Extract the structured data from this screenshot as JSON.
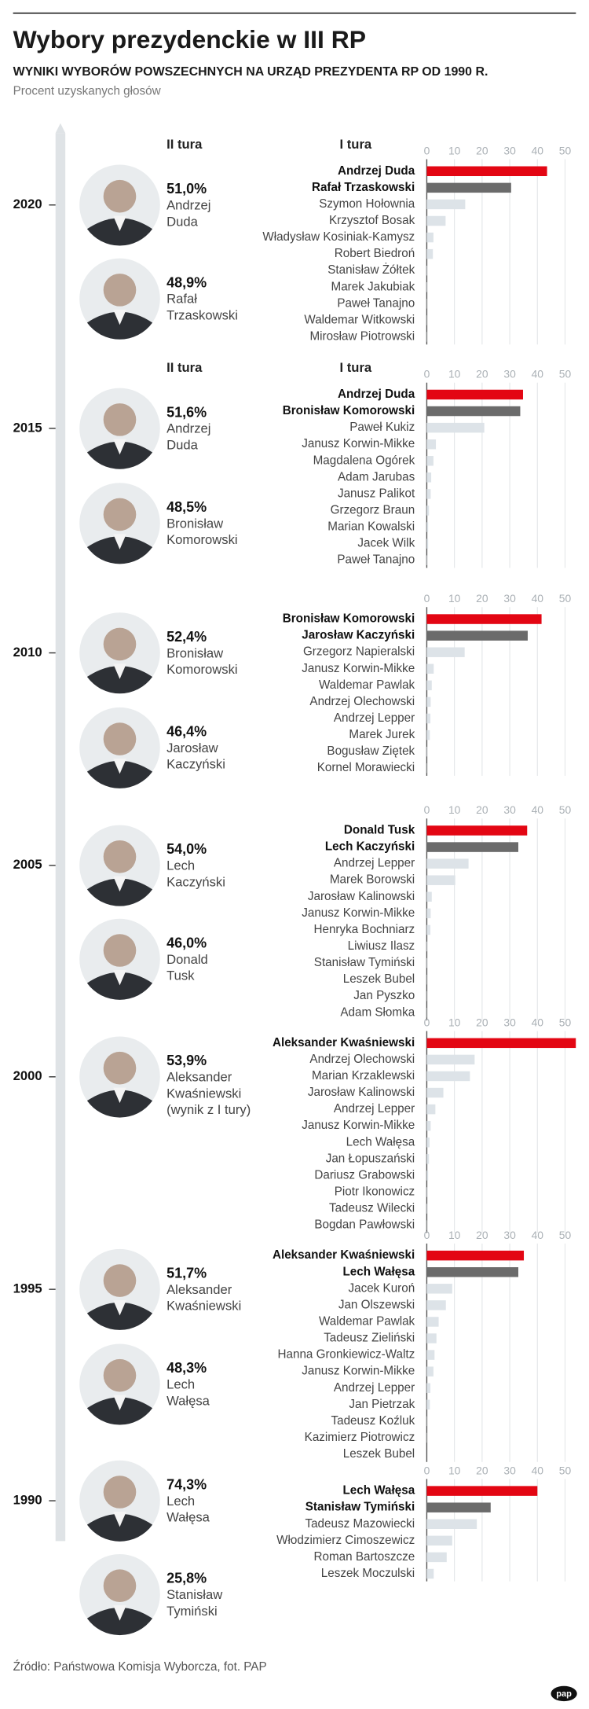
{
  "title": "Wybory prezydenckie w III RP",
  "subtitle": "WYNIKI WYBORÓW POWSZECHNYCH NA URZĄD PREZYDENTA RP OD 1990 R.",
  "note": "Procent uzyskanych głosów",
  "source": "Źródło: Państwowa Komisja Wyborcza, fot. PAP",
  "logo": "pap",
  "chart_data": [
    {
      "type": "bar",
      "year": "2020",
      "round2_header": "II tura",
      "round1_header": "I tura",
      "round2": {
        "names": [
          [
            "Andrzej",
            "Duda"
          ],
          [
            "Rafał",
            "Trzaskowski"
          ]
        ],
        "values": [
          51.0,
          48.9
        ],
        "value_labels": [
          "51,0%",
          "48,9%"
        ]
      },
      "categories": [
        "Andrzej Duda",
        "Rafał Trzaskowski",
        "Szymon Hołownia",
        "Krzysztof Bosak",
        "Władysław Kosiniak-Kamysz",
        "Robert Biedroń",
        "Stanisław Żółtek",
        "Marek Jakubiak",
        "Paweł Tanajno",
        "Waldemar Witkowski",
        "Mirosław Piotrowski"
      ],
      "values": [
        43.5,
        30.5,
        13.9,
        6.8,
        2.4,
        2.2,
        0.2,
        0.2,
        0.1,
        0.1,
        0.1
      ],
      "highlight_colors": [
        "#e30613",
        "#6b6b6b"
      ],
      "color": "#dde3e8",
      "xlim": [
        0,
        50
      ],
      "xticks": [
        0,
        10,
        20,
        30,
        40,
        50
      ],
      "grid": true
    },
    {
      "type": "bar",
      "year": "2015",
      "round2_header": "II tura",
      "round1_header": "I tura",
      "round2": {
        "names": [
          [
            "Andrzej",
            "Duda"
          ],
          [
            "Bronisław",
            "Komorowski"
          ]
        ],
        "values": [
          51.6,
          48.5
        ],
        "value_labels": [
          "51,6%",
          "48,5%"
        ]
      },
      "categories": [
        "Andrzej Duda",
        "Bronisław Komorowski",
        "Paweł Kukiz",
        "Janusz Korwin-Mikke",
        "Magdalena Ogórek",
        "Adam Jarubas",
        "Janusz Palikot",
        "Grzegorz Braun",
        "Marian Kowalski",
        "Jacek Wilk",
        "Paweł Tanajno"
      ],
      "values": [
        34.8,
        33.8,
        20.8,
        3.3,
        2.4,
        1.6,
        1.4,
        0.8,
        0.5,
        0.5,
        0.2
      ],
      "highlight_colors": [
        "#e30613",
        "#6b6b6b"
      ],
      "color": "#dde3e8",
      "xlim": [
        0,
        50
      ],
      "xticks": [
        0,
        10,
        20,
        30,
        40,
        50
      ],
      "grid": true
    },
    {
      "type": "bar",
      "year": "2010",
      "round2": {
        "names": [
          [
            "Bronisław",
            "Komorowski"
          ],
          [
            "Jarosław",
            "Kaczyński"
          ]
        ],
        "values": [
          52.4,
          46.4
        ],
        "value_labels": [
          "52,4%",
          "46,4%"
        ]
      },
      "categories": [
        "Bronisław Komorowski",
        "Jarosław Kaczyński",
        "Grzegorz Napieralski",
        "Janusz Korwin-Mikke",
        "Waldemar Pawlak",
        "Andrzej Olechowski",
        "Andrzej Lepper",
        "Marek Jurek",
        "Bogusław Ziętek",
        "Kornel Morawiecki"
      ],
      "values": [
        41.5,
        36.5,
        13.7,
        2.5,
        1.8,
        1.4,
        1.3,
        1.1,
        0.2,
        0.1
      ],
      "highlight_colors": [
        "#e30613",
        "#6b6b6b"
      ],
      "color": "#dde3e8",
      "xlim": [
        0,
        50
      ],
      "xticks": [
        0,
        10,
        20,
        30,
        40,
        50
      ],
      "grid": true
    },
    {
      "type": "bar",
      "year": "2005",
      "round2": {
        "names": [
          [
            "Lech",
            "Kaczyński"
          ],
          [
            "Donald",
            "Tusk"
          ]
        ],
        "values": [
          54.0,
          46.0
        ],
        "value_labels": [
          "54,0%",
          "46,0%"
        ]
      },
      "categories": [
        "Donald Tusk",
        "Lech Kaczyński",
        "Andrzej Lepper",
        "Marek Borowski",
        "Jarosław Kalinowski",
        "Janusz Korwin-Mikke",
        "Henryka Bochniarz",
        "Liwiusz Ilasz",
        "Stanisław Tymiński",
        "Leszek Bubel",
        "Jan Pyszko",
        "Adam Słomka"
      ],
      "values": [
        36.3,
        33.1,
        15.1,
        10.3,
        1.8,
        1.4,
        1.3,
        0.2,
        0.2,
        0.1,
        0.1,
        0.1
      ],
      "highlight_colors": [
        "#e30613",
        "#6b6b6b"
      ],
      "color": "#dde3e8",
      "xlim": [
        0,
        50
      ],
      "xticks": [
        0,
        10,
        20,
        30,
        40,
        50
      ],
      "grid": true
    },
    {
      "type": "bar",
      "year": "2000",
      "round2": {
        "names": [
          [
            "Aleksander",
            "Kwaśniewski"
          ]
        ],
        "values": [
          53.9
        ],
        "value_labels": [
          "53,9%"
        ],
        "note": "(wynik z I tury)"
      },
      "categories": [
        "Aleksander Kwaśniewski",
        "Andrzej Olechowski",
        "Marian Krzaklewski",
        "Jarosław Kalinowski",
        "Andrzej Lepper",
        "Janusz Korwin-Mikke",
        "Lech Wałęsa",
        "Jan Łopuszański",
        "Dariusz Grabowski",
        "Piotr Ikonowicz",
        "Tadeusz Wilecki",
        "Bogdan Pawłowski"
      ],
      "values": [
        53.9,
        17.3,
        15.6,
        6.0,
        3.1,
        1.4,
        1.0,
        0.8,
        0.5,
        0.2,
        0.2,
        0.1
      ],
      "highlight_colors": [
        "#e30613"
      ],
      "color": "#dde3e8",
      "xlim": [
        0,
        50
      ],
      "xticks": [
        0,
        10,
        20,
        30,
        40,
        50
      ],
      "grid": true
    },
    {
      "type": "bar",
      "year": "1995",
      "round2": {
        "names": [
          [
            "Aleksander",
            "Kwaśniewski"
          ],
          [
            "Lech",
            "Wałęsa"
          ]
        ],
        "values": [
          51.7,
          48.3
        ],
        "value_labels": [
          "51,7%",
          "48,3%"
        ]
      },
      "categories": [
        "Aleksander Kwaśniewski",
        "Lech Wałęsa",
        "Jacek Kuroń",
        "Jan Olszewski",
        "Waldemar Pawlak",
        "Tadeusz Zieliński",
        "Hanna Gronkiewicz-Waltz",
        "Janusz Korwin-Mikke",
        "Andrzej Lepper",
        "Jan Pietrzak",
        "Tadeusz Koźluk",
        "Kazimierz Piotrowicz",
        "Leszek Bubel"
      ],
      "values": [
        35.1,
        33.1,
        9.2,
        6.9,
        4.3,
        3.5,
        2.8,
        2.4,
        1.3,
        1.1,
        0.1,
        0.1,
        0.0
      ],
      "highlight_colors": [
        "#e30613",
        "#6b6b6b"
      ],
      "color": "#dde3e8",
      "xlim": [
        0,
        50
      ],
      "xticks": [
        0,
        10,
        20,
        30,
        40,
        50
      ],
      "grid": true
    },
    {
      "type": "bar",
      "year": "1990",
      "round2": {
        "names": [
          [
            "Lech",
            "Wałęsa"
          ],
          [
            "Stanisław",
            "Tymiński"
          ]
        ],
        "values": [
          74.3,
          25.8
        ],
        "value_labels": [
          "74,3%",
          "25,8%"
        ]
      },
      "categories": [
        "Lech Wałęsa",
        "Stanisław Tymiński",
        "Tadeusz Mazowiecki",
        "Włodzimierz Cimoszewicz",
        "Roman Bartoszcze",
        "Leszek Moczulski"
      ],
      "values": [
        40.0,
        23.1,
        18.1,
        9.2,
        7.2,
        2.5
      ],
      "highlight_colors": [
        "#e30613",
        "#6b6b6b"
      ],
      "color": "#dde3e8",
      "xlim": [
        0,
        50
      ],
      "xticks": [
        0,
        10,
        20,
        30,
        40,
        50
      ],
      "grid": true
    }
  ]
}
